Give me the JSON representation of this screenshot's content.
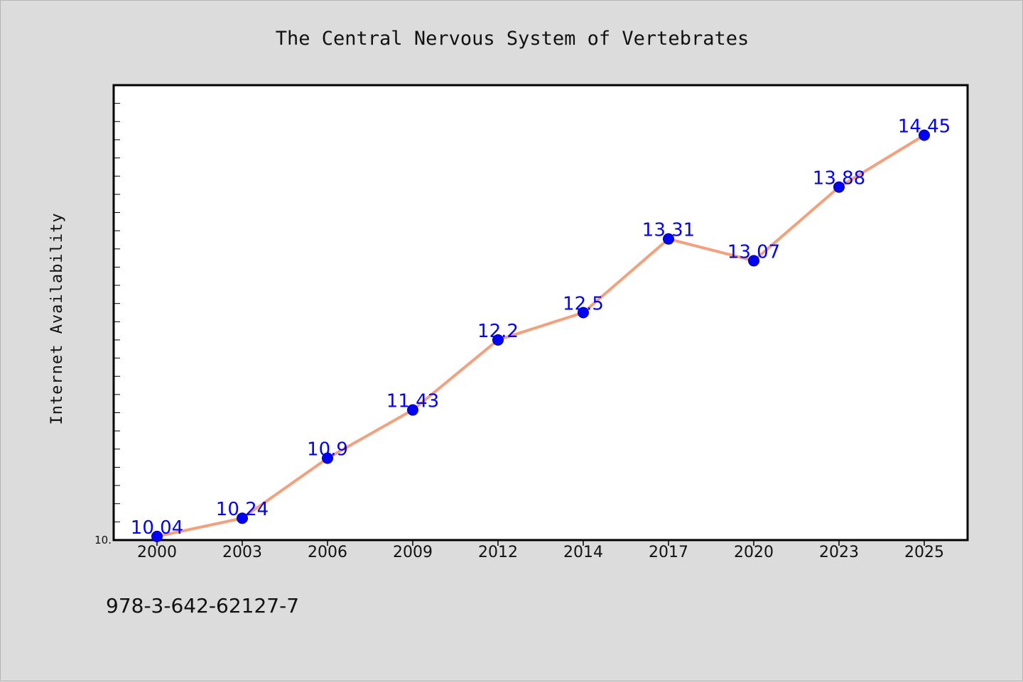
{
  "chart_data": {
    "type": "line",
    "title": "The Central Nervous System of Vertebrates",
    "xlabel": "",
    "ylabel": "Internet Availability",
    "categories": [
      "2000",
      "2003",
      "2006",
      "2009",
      "2012",
      "2014",
      "2017",
      "2020",
      "2023",
      "2025"
    ],
    "series": [
      {
        "values": [
          10.04,
          10.24,
          10.9,
          11.43,
          12.2,
          12.5,
          13.31,
          13.07,
          13.88,
          14.45
        ],
        "data_labels": [
          "10.04",
          "10.24",
          "10.9",
          "11.43",
          "12.2",
          "12.5",
          "13.31",
          "13.07",
          "13.88",
          "14.45"
        ]
      }
    ],
    "ylim": [
      10.0,
      15.0
    ],
    "ytick_labels": [
      "10."
    ],
    "grid": false,
    "legend": "none",
    "colors": {
      "line": "#f4a07c",
      "marker": "#0000ff",
      "data_label": "#0000ff",
      "plot_background": "#ffffff",
      "figure_background": "#dcdcdc"
    }
  },
  "footer": {
    "isbn": "978-3-642-62127-7"
  }
}
